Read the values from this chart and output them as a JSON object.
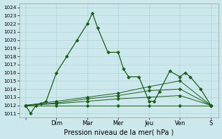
{
  "xlabel": "Pression niveau de la mer( hPa )",
  "bg_color": "#cce8ec",
  "grid_color": "#aad4d8",
  "line_color": "#1a5c1a",
  "ylim": [
    1010.5,
    1024.5
  ],
  "yticks": [
    1011,
    1012,
    1013,
    1014,
    1015,
    1016,
    1017,
    1018,
    1019,
    1020,
    1021,
    1022,
    1023,
    1024
  ],
  "day_labels": [
    "",
    "Dim",
    "Mar",
    "Mer",
    "Jeu",
    "Ven",
    "S"
  ],
  "day_x": [
    0,
    48,
    96,
    144,
    192,
    240,
    288
  ],
  "xlim": [
    -10,
    300
  ],
  "series": [
    {
      "x": [
        0,
        8,
        16,
        24,
        32,
        48,
        64,
        80,
        96,
        104,
        112,
        128,
        144,
        152,
        160,
        176,
        192,
        200,
        208,
        224,
        240,
        248,
        256,
        272,
        288
      ],
      "y": [
        1012,
        1011,
        1012,
        1012.2,
        1012.5,
        1016,
        1018,
        1020,
        1022,
        1023.3,
        1021.5,
        1018.5,
        1018.5,
        1016.5,
        1015.5,
        1015.5,
        1012.5,
        1012.5,
        1013.7,
        1016.2,
        1015.5,
        1016,
        1015.5,
        1014,
        1012
      ]
    },
    {
      "x": [
        0,
        48,
        96,
        144,
        192,
        240,
        288
      ],
      "y": [
        1012,
        1012,
        1012,
        1012,
        1012,
        1012,
        1012
      ]
    },
    {
      "x": [
        0,
        48,
        96,
        144,
        192,
        240,
        288
      ],
      "y": [
        1012,
        1012.2,
        1012.5,
        1012.8,
        1013,
        1013.2,
        1012
      ]
    },
    {
      "x": [
        0,
        48,
        96,
        144,
        192,
        240,
        288
      ],
      "y": [
        1012,
        1012.3,
        1012.8,
        1013.2,
        1013.8,
        1014,
        1012
      ]
    },
    {
      "x": [
        0,
        48,
        96,
        144,
        192,
        240,
        288
      ],
      "y": [
        1012,
        1012.5,
        1013,
        1013.5,
        1014.3,
        1015,
        1012
      ]
    }
  ],
  "marker_sizes": [
    2.5,
    2.5,
    2.5,
    2.5,
    2.5
  ],
  "linewidths": [
    0.9,
    0.7,
    0.7,
    0.7,
    0.7
  ]
}
